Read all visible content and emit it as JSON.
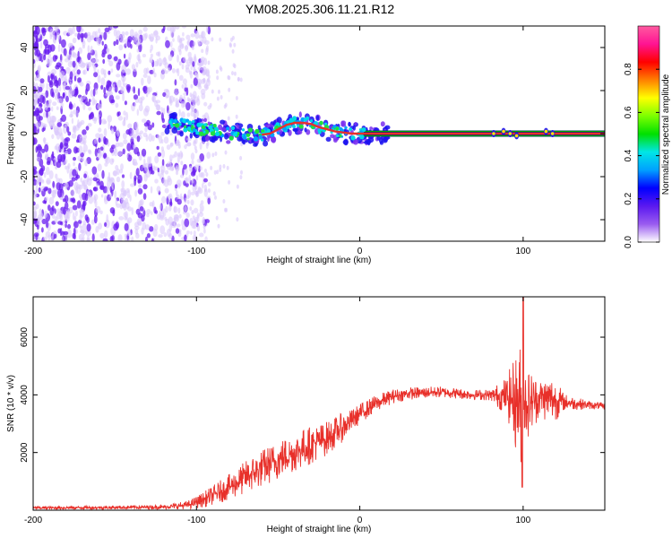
{
  "title": "YM08.2025.306.11.21.R12",
  "colors": {
    "snr_line": "#e8302a",
    "ridge": "#e8302a",
    "baseline": "#00a800",
    "noise_dark": "#6a1cf0",
    "noise_light": "#d9c6fb",
    "axis": "#000000"
  },
  "chart_data": [
    {
      "type": "heatmap",
      "name": "spectrogram",
      "xlabel": "Height of straight line (km)",
      "ylabel": "Frequency (Hz)",
      "xlim": [
        -200,
        150
      ],
      "ylim": [
        -50,
        50
      ],
      "xticks": [
        "-200",
        "-100",
        "0",
        "100"
      ],
      "xtick_values": [
        -200,
        -100,
        0,
        100
      ],
      "yticks": [
        "40",
        "20",
        "0",
        "-20",
        "-40"
      ],
      "ytick_values": [
        40,
        20,
        0,
        -20,
        -40
      ],
      "ridge": {
        "x": [
          -115,
          -105,
          -95,
          -85,
          -75,
          -65,
          -55,
          -50,
          -45,
          -40,
          -35,
          -30,
          -25,
          -20,
          -15,
          -10,
          -5,
          0,
          10,
          20,
          40,
          60,
          80,
          90,
          95,
          100,
          110,
          120,
          150
        ],
        "y": [
          5,
          3.5,
          2,
          1,
          0,
          -1,
          0,
          2,
          4,
          5,
          5,
          4.5,
          3,
          2,
          1,
          0.5,
          0,
          0,
          0,
          0,
          0,
          0,
          0,
          0,
          0,
          0,
          0,
          0,
          0
        ]
      },
      "colorbar": {
        "label": "Normalized spectral amplitude",
        "range": [
          0,
          1
        ],
        "ticks": [
          "0.0",
          "0.2",
          "0.4",
          "0.6",
          "0.8"
        ],
        "tick_values": [
          0.0,
          0.2,
          0.4,
          0.6,
          0.8
        ],
        "colormap": [
          "#ffffff",
          "#9a5cf0",
          "#5a18f0",
          "#0000ff",
          "#00a0ff",
          "#00e6e6",
          "#00e000",
          "#7cff00",
          "#ffff00",
          "#ff8000",
          "#ff0000",
          "#ff1493",
          "#ff5aa0"
        ]
      }
    },
    {
      "type": "line",
      "name": "snr",
      "xlabel": "Height of straight line (km)",
      "ylabel": "SNR (10 * v/v)",
      "xlim": [
        -200,
        150
      ],
      "ylim": [
        0,
        7400
      ],
      "xticks": [
        "-200",
        "-100",
        "0",
        "100"
      ],
      "xtick_values": [
        -200,
        -100,
        0,
        100
      ],
      "yticks": [
        "2000",
        "4000",
        "6000"
      ],
      "ytick_values": [
        2000,
        4000,
        6000
      ],
      "envelope": {
        "x": [
          -200,
          -160,
          -120,
          -105,
          -95,
          -80,
          -65,
          -50,
          -35,
          -20,
          -10,
          -5,
          0,
          10,
          20,
          30,
          50,
          70,
          80,
          90,
          95,
          98,
          102,
          110,
          118,
          125,
          140,
          150
        ],
        "mean": [
          80,
          90,
          110,
          180,
          380,
          800,
          1300,
          1750,
          2150,
          2500,
          2900,
          3100,
          3350,
          3700,
          3950,
          4050,
          4100,
          4000,
          4000,
          3950,
          3800,
          3600,
          3700,
          3900,
          3850,
          3750,
          3650,
          3600
        ],
        "spread": [
          60,
          60,
          80,
          150,
          280,
          450,
          650,
          700,
          700,
          600,
          500,
          400,
          350,
          300,
          250,
          220,
          200,
          180,
          200,
          700,
          1600,
          2300,
          1300,
          700,
          900,
          300,
          150,
          120
        ]
      },
      "peak": {
        "x": 100,
        "y": 7400
      },
      "trough": {
        "x": 100,
        "y": 800
      }
    }
  ]
}
